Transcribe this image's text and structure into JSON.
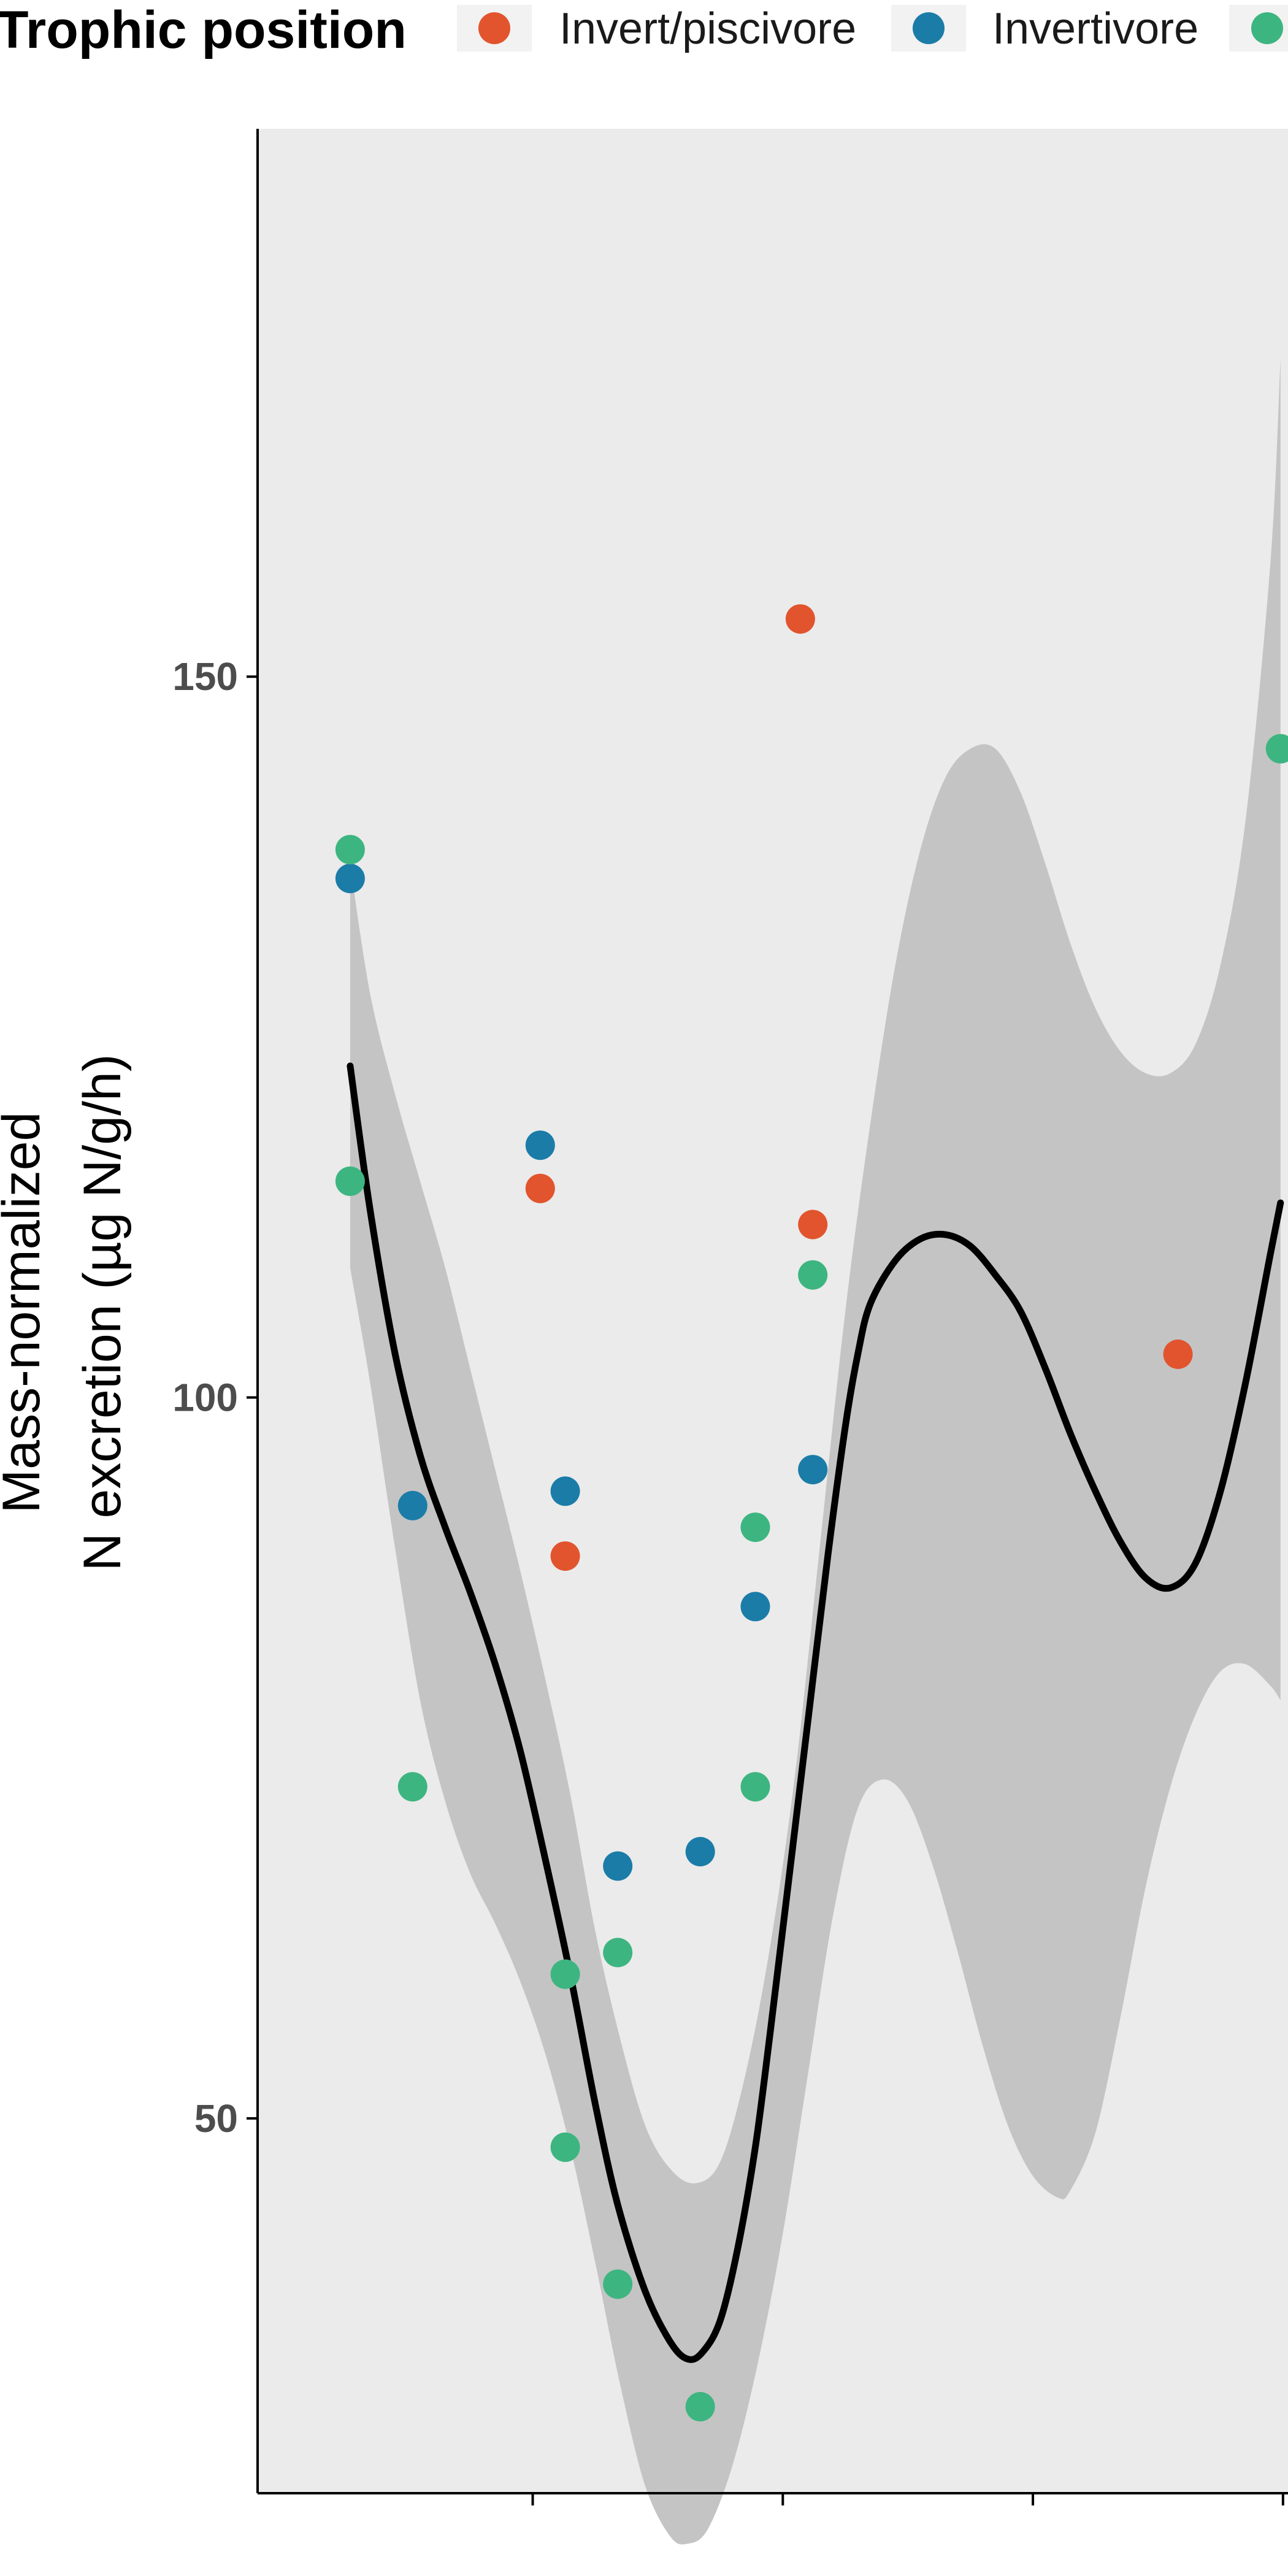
{
  "chart_data": {
    "type": "scatter",
    "legend": {
      "title": "Trophic position",
      "position": "top",
      "entries": [
        {
          "label": "Invert/piscivore",
          "color": "#E1542D"
        },
        {
          "label": "Invertivore",
          "color": "#1B7CA8"
        },
        {
          "label": "",
          "color": "#3DB580"
        }
      ]
    },
    "ylabel_lines": [
      "Mass-normalized",
      "N excretion (µg N/g/h)"
    ],
    "xlabel": "",
    "x_tick_labels": [
      "",
      "",
      "",
      ""
    ],
    "x_ticks": [
      9,
      19,
      29,
      39
    ],
    "xlim": [
      -2,
      39.2
    ],
    "y_ticks": [
      50,
      100,
      150
    ],
    "y_tick_labels": [
      "50",
      "100",
      "150"
    ],
    "ylim": [
      24,
      188
    ],
    "grid": false,
    "panel_background": "#EBEBEB",
    "series": [
      {
        "name": "Invert/piscivore",
        "color": "#E1542D",
        "points": [
          [
            9.3,
            114.5
          ],
          [
            10.3,
            89
          ],
          [
            19.7,
            154
          ],
          [
            20.2,
            112
          ],
          [
            34.8,
            103
          ]
        ]
      },
      {
        "name": "Invertivore",
        "color": "#1B7CA8",
        "points": [
          [
            1.7,
            136
          ],
          [
            4.2,
            92.5
          ],
          [
            9.3,
            117.5
          ],
          [
            10.3,
            93.5
          ],
          [
            12.4,
            67.5
          ],
          [
            15.7,
            68.5
          ],
          [
            17.9,
            85.5
          ],
          [
            20.2,
            95
          ]
        ]
      },
      {
        "color": "#3DB580",
        "points": [
          [
            1.7,
            138
          ],
          [
            1.7,
            115
          ],
          [
            4.2,
            73
          ],
          [
            10.3,
            60
          ],
          [
            10.3,
            48
          ],
          [
            12.4,
            61.5
          ],
          [
            12.4,
            38.5
          ],
          [
            15.7,
            30
          ],
          [
            17.9,
            73
          ],
          [
            17.9,
            91
          ],
          [
            20.2,
            108.5
          ],
          [
            38.9,
            145
          ]
        ]
      }
    ],
    "smooth": {
      "color": "#000000",
      "ribbon_color": "#C4C4C4",
      "fit": [
        [
          1.7,
          123
        ],
        [
          2.5,
          113
        ],
        [
          3.5,
          103
        ],
        [
          4.5,
          96
        ],
        [
          5.5,
          91
        ],
        [
          6.5,
          86.5
        ],
        [
          7.5,
          81.5
        ],
        [
          8.5,
          75.5
        ],
        [
          9.5,
          68
        ],
        [
          10.5,
          60
        ],
        [
          11.5,
          51
        ],
        [
          12.4,
          44
        ],
        [
          13.5,
          38
        ],
        [
          14.5,
          34.5
        ],
        [
          15.2,
          33.3
        ],
        [
          15.8,
          33.8
        ],
        [
          16.5,
          36
        ],
        [
          17.2,
          41
        ],
        [
          17.9,
          48
        ],
        [
          18.5,
          56
        ],
        [
          19.2,
          66
        ],
        [
          20,
          77.5
        ],
        [
          20.8,
          89
        ],
        [
          21.5,
          98
        ],
        [
          22,
          103
        ],
        [
          22.5,
          106.5
        ],
        [
          23.5,
          109.5
        ],
        [
          24.5,
          111
        ],
        [
          25.5,
          111.3
        ],
        [
          26.5,
          110.5
        ],
        [
          27.5,
          108.5
        ],
        [
          28.5,
          106
        ],
        [
          29.5,
          102
        ],
        [
          30.5,
          97.5
        ],
        [
          31.5,
          93.5
        ],
        [
          32.5,
          90
        ],
        [
          33.5,
          87.5
        ],
        [
          34.5,
          86.8
        ],
        [
          35.5,
          88.5
        ],
        [
          36.5,
          93.5
        ],
        [
          37.5,
          101
        ],
        [
          38.5,
          110
        ],
        [
          38.9,
          113.5
        ]
      ],
      "upper": [
        [
          1.7,
          137
        ],
        [
          2.5,
          128
        ],
        [
          3.5,
          121
        ],
        [
          4.5,
          115
        ],
        [
          5.5,
          109
        ],
        [
          6.5,
          102
        ],
        [
          7.5,
          95
        ],
        [
          8.5,
          88
        ],
        [
          9.5,
          80.5
        ],
        [
          10.5,
          72.5
        ],
        [
          11.5,
          63
        ],
        [
          12.5,
          55.5
        ],
        [
          13.5,
          49.5
        ],
        [
          14.5,
          46.5
        ],
        [
          15.5,
          45.5
        ],
        [
          16.5,
          47
        ],
        [
          17.5,
          53
        ],
        [
          18.5,
          62
        ],
        [
          19.5,
          74
        ],
        [
          20.5,
          90
        ],
        [
          21.5,
          106
        ],
        [
          22.5,
          119
        ],
        [
          23.5,
          130
        ],
        [
          24.5,
          138
        ],
        [
          25.5,
          143
        ],
        [
          26.5,
          145
        ],
        [
          27.5,
          145
        ],
        [
          28.5,
          142
        ],
        [
          29.5,
          137
        ],
        [
          30.5,
          131.5
        ],
        [
          31.5,
          127
        ],
        [
          32.5,
          124
        ],
        [
          33.5,
          122.5
        ],
        [
          34.5,
          122.5
        ],
        [
          35.5,
          124.5
        ],
        [
          36.5,
          130
        ],
        [
          37.5,
          140
        ],
        [
          38.5,
          158
        ],
        [
          38.9,
          172
        ]
      ],
      "lower": [
        [
          1.7,
          109
        ],
        [
          2.5,
          101
        ],
        [
          3.5,
          89.5
        ],
        [
          4.5,
          79
        ],
        [
          5.5,
          72
        ],
        [
          6.5,
          67
        ],
        [
          7.5,
          63.5
        ],
        [
          8.5,
          59.5
        ],
        [
          9.5,
          54.5
        ],
        [
          10.5,
          48
        ],
        [
          11.5,
          40
        ],
        [
          12.5,
          31.5
        ],
        [
          13.5,
          24.5
        ],
        [
          14.5,
          21
        ],
        [
          15.2,
          20.5
        ],
        [
          16,
          21.5
        ],
        [
          17,
          26
        ],
        [
          18,
          33
        ],
        [
          19,
          42
        ],
        [
          20,
          53
        ],
        [
          21,
          64
        ],
        [
          22,
          71.5
        ],
        [
          23,
          73.5
        ],
        [
          24,
          72
        ],
        [
          25,
          67.5
        ],
        [
          26,
          61.5
        ],
        [
          27,
          55
        ],
        [
          28,
          49.5
        ],
        [
          29,
          46
        ],
        [
          30,
          44.5
        ],
        [
          30.5,
          45
        ],
        [
          31.5,
          49
        ],
        [
          32.5,
          57
        ],
        [
          33.5,
          66
        ],
        [
          34.5,
          73
        ],
        [
          35.5,
          78
        ],
        [
          36.5,
          81
        ],
        [
          37.5,
          81.5
        ],
        [
          38.5,
          80
        ],
        [
          38.9,
          79
        ]
      ]
    }
  }
}
